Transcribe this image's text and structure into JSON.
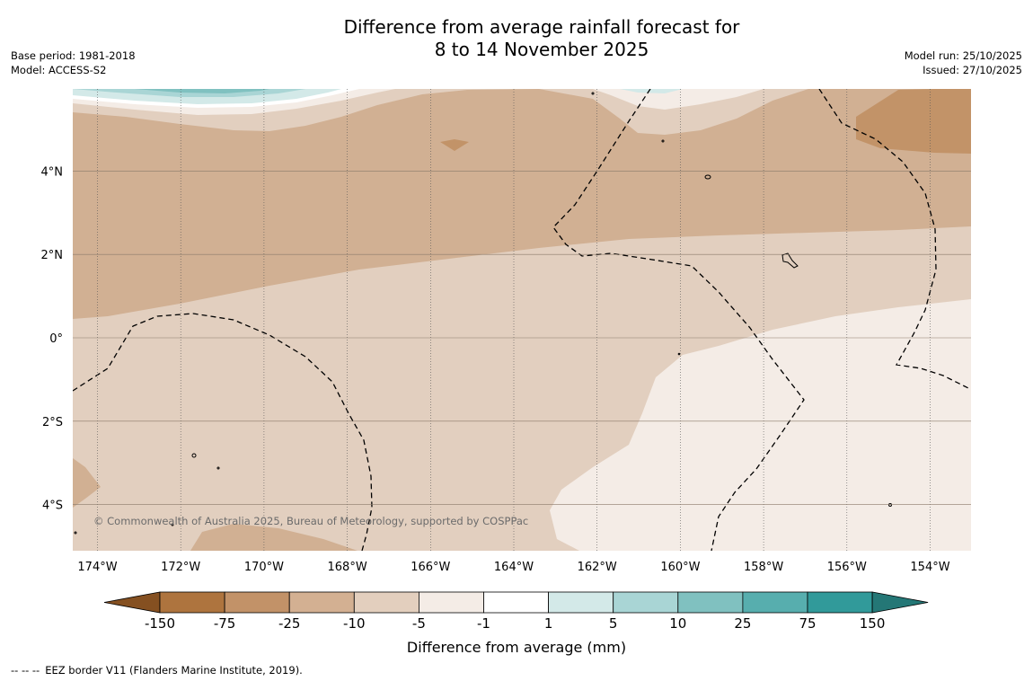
{
  "title_line1": "Difference from average rainfall forecast for",
  "title_line2": "8 to 14 November 2025",
  "base_period": "Base period: 1981-2018",
  "model": "Model: ACCESS-S2",
  "model_run": "Model run: 25/10/2025",
  "issued": "Issued: 27/10/2025",
  "copyright": "© Commonwealth of Australia 2025, Bureau of Meteorology, supported by COSPPac",
  "map": {
    "lon_ticks": [
      {
        "value": -174,
        "label": "174°W"
      },
      {
        "value": -172,
        "label": "172°W"
      },
      {
        "value": -170,
        "label": "170°W"
      },
      {
        "value": -168,
        "label": "168°W"
      },
      {
        "value": -166,
        "label": "166°W"
      },
      {
        "value": -164,
        "label": "164°W"
      },
      {
        "value": -162,
        "label": "162°W"
      },
      {
        "value": -160,
        "label": "160°W"
      },
      {
        "value": -158,
        "label": "158°W"
      },
      {
        "value": -156,
        "label": "156°W"
      },
      {
        "value": -154,
        "label": "154°W"
      }
    ],
    "lat_ticks": [
      {
        "value": 4,
        "label": "4°N"
      },
      {
        "value": 2,
        "label": "2°N"
      },
      {
        "value": 0,
        "label": "0°"
      },
      {
        "value": -2,
        "label": "2°S"
      },
      {
        "value": -4,
        "label": "4°S"
      }
    ]
  },
  "legend": {
    "label": "Difference from average (mm)",
    "ticks": [
      "-150",
      "-75",
      "-25",
      "-10",
      "-5",
      "-1",
      "1",
      "5",
      "10",
      "25",
      "75",
      "150"
    ],
    "colors": [
      "#855021",
      "#ae743e",
      "#c29268",
      "#d3b092",
      "#e3cfbe",
      "#f4ece6",
      "#ffffff",
      "#d3e9e8",
      "#a9d5d5",
      "#80c1c0",
      "#57aeae",
      "#319a9a",
      "#247776"
    ]
  },
  "footnote_dashes": "--  --  --",
  "footnote": "EEZ border V11 (Flanders Marine Institute, 2019)."
}
